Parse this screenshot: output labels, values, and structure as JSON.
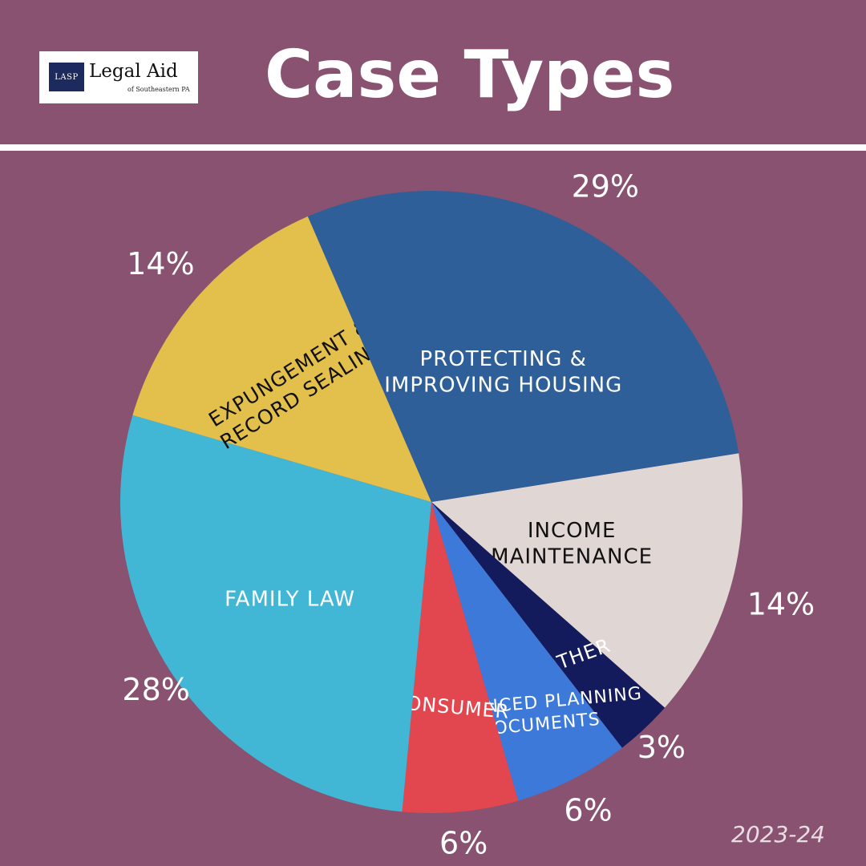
{
  "header": {
    "title": "Case Types",
    "logo": {
      "abbr": "LASP",
      "name": "Legal Aid",
      "sub": "of Southeastern PA",
      "logo-icon": "lasp-logo"
    }
  },
  "footer": {
    "year": "2023-24"
  },
  "colors": {
    "background": "#895270",
    "divider": "#ffffff"
  },
  "chart_data": {
    "type": "pie",
    "slices": [
      {
        "label": [
          "INCOME",
          "MAINTENANCE"
        ],
        "value": 14,
        "display": "14%",
        "color": "#E0D6D3",
        "label_color": "#111111"
      },
      {
        "label": [
          "OTHER"
        ],
        "value": 3,
        "display": "3%",
        "color": "#141B5C",
        "label_color": "#ffffff"
      },
      {
        "label": [
          "ADVANCED PLANNING",
          "DOCUMENTS"
        ],
        "value": 6,
        "display": "6%",
        "color": "#3D79D9",
        "label_color": "#ffffff"
      },
      {
        "label": [
          "CONSUMER"
        ],
        "value": 6,
        "display": "6%",
        "color": "#E2474F",
        "label_color": "#ffffff"
      },
      {
        "label": [
          "FAMILY LAW"
        ],
        "value": 28,
        "display": "28%",
        "color": "#42B7D5",
        "label_color": "#ffffff"
      },
      {
        "label": [
          "EXPUNGEMENT &",
          "RECORD SEALING"
        ],
        "value": 14,
        "display": "14%",
        "color": "#E3BF4B",
        "label_color": "#111111"
      },
      {
        "label": [
          "PROTECTING &",
          "IMPROVING HOUSING"
        ],
        "value": 29,
        "display": "29%",
        "color": "#2F5F98",
        "label_color": "#ffffff"
      }
    ]
  }
}
